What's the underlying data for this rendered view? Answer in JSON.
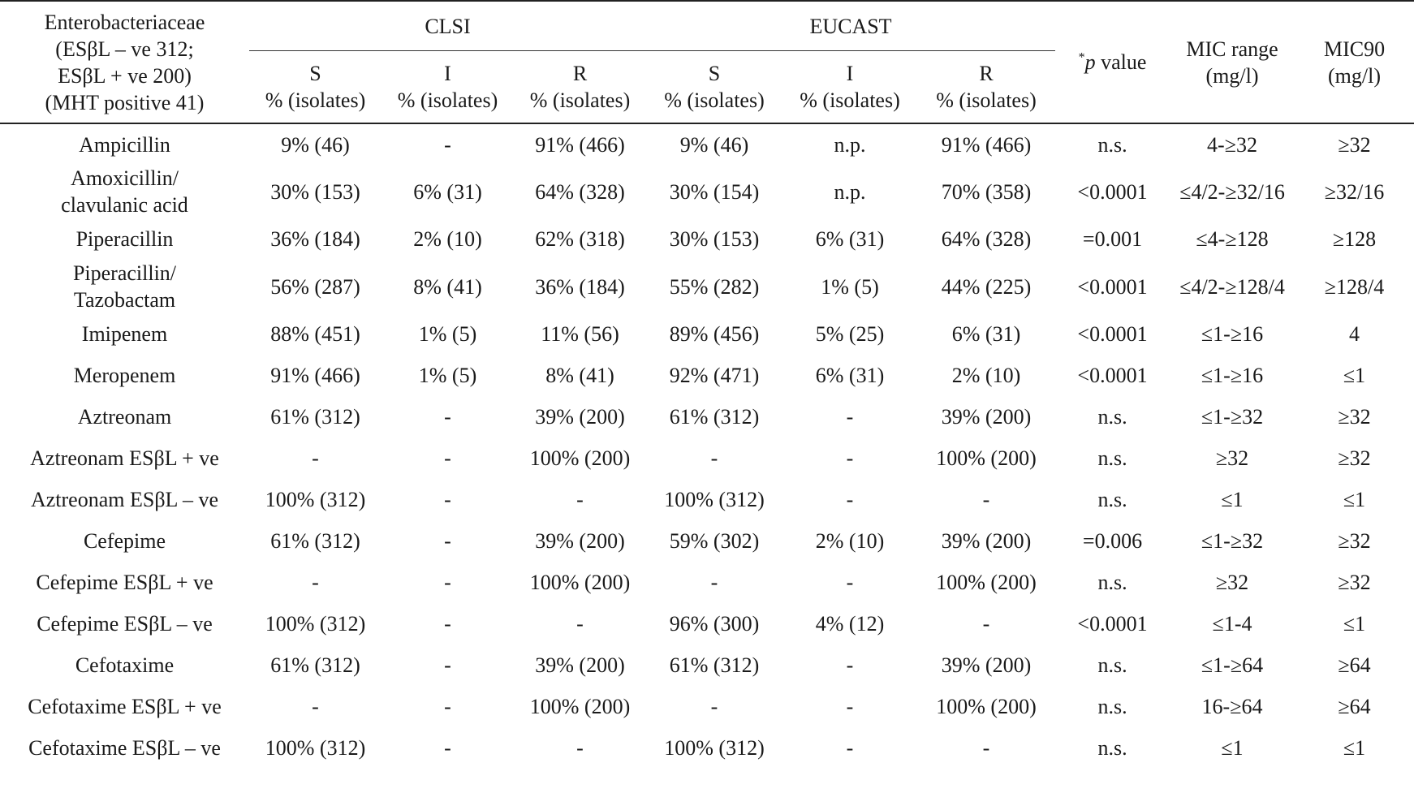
{
  "table": {
    "stub_header_lines": [
      "Enterobacteriaceae",
      "(ESβL – ve 312;",
      "ESβL + ve 200)",
      "(MHT positive 41)"
    ],
    "groups": {
      "clsi": "CLSI",
      "eucast": "EUCAST"
    },
    "sub_headers": {
      "S": {
        "letter": "S",
        "unit": "% (isolates)"
      },
      "I": {
        "letter": "I",
        "unit": "% (isolates)"
      },
      "R": {
        "letter": "R",
        "unit": "% (isolates)"
      }
    },
    "p_value_header": {
      "star": "*",
      "p": "p",
      "rest": " value"
    },
    "mic_range_header": {
      "line1": "MIC range",
      "line2": "(mg/l)"
    },
    "mic90_header": {
      "line1": "MIC90",
      "line2": "(mg/l)"
    },
    "rows": [
      {
        "drug": [
          "Ampicillin"
        ],
        "clsi_s": "9% (46)",
        "clsi_i": "-",
        "clsi_r": "91% (466)",
        "eucast_s": "9% (46)",
        "eucast_i": "n.p.",
        "eucast_r": "91% (466)",
        "p": "n.s.",
        "mic_range": "4-≥32",
        "mic90": "≥32"
      },
      {
        "drug": [
          "Amoxicillin/",
          "clavulanic acid"
        ],
        "clsi_s": "30% (153)",
        "clsi_i": "6% (31)",
        "clsi_r": "64% (328)",
        "eucast_s": "30% (154)",
        "eucast_i": "n.p.",
        "eucast_r": "70% (358)",
        "p": "<0.0001",
        "mic_range": "≤4/2-≥32/16",
        "mic90": "≥32/16"
      },
      {
        "drug": [
          "Piperacillin"
        ],
        "clsi_s": "36% (184)",
        "clsi_i": "2% (10)",
        "clsi_r": "62% (318)",
        "eucast_s": "30% (153)",
        "eucast_i": "6% (31)",
        "eucast_r": "64% (328)",
        "p": "=0.001",
        "mic_range": "≤4-≥128",
        "mic90": "≥128"
      },
      {
        "drug": [
          "Piperacillin/",
          "Tazobactam"
        ],
        "clsi_s": "56% (287)",
        "clsi_i": "8% (41)",
        "clsi_r": "36% (184)",
        "eucast_s": "55% (282)",
        "eucast_i": "1% (5)",
        "eucast_r": "44% (225)",
        "p": "<0.0001",
        "mic_range": "≤4/2-≥128/4",
        "mic90": "≥128/4"
      },
      {
        "drug": [
          "Imipenem"
        ],
        "clsi_s": "88% (451)",
        "clsi_i": "1% (5)",
        "clsi_r": "11% (56)",
        "eucast_s": "89% (456)",
        "eucast_i": "5% (25)",
        "eucast_r": "6% (31)",
        "p": "<0.0001",
        "mic_range": "≤1-≥16",
        "mic90": "4"
      },
      {
        "drug": [
          "Meropenem"
        ],
        "clsi_s": "91% (466)",
        "clsi_i": "1% (5)",
        "clsi_r": "8% (41)",
        "eucast_s": "92% (471)",
        "eucast_i": "6% (31)",
        "eucast_r": "2% (10)",
        "p": "<0.0001",
        "mic_range": "≤1-≥16",
        "mic90": "≤1"
      },
      {
        "drug": [
          "Aztreonam"
        ],
        "clsi_s": "61% (312)",
        "clsi_i": "-",
        "clsi_r": "39% (200)",
        "eucast_s": "61% (312)",
        "eucast_i": "-",
        "eucast_r": "39% (200)",
        "p": "n.s.",
        "mic_range": "≤1-≥32",
        "mic90": "≥32"
      },
      {
        "drug": [
          "Aztreonam ESβL + ve"
        ],
        "clsi_s": "-",
        "clsi_i": "-",
        "clsi_r": "100% (200)",
        "eucast_s": "-",
        "eucast_i": "-",
        "eucast_r": "100% (200)",
        "p": "n.s.",
        "mic_range": "≥32",
        "mic90": "≥32"
      },
      {
        "drug": [
          "Aztreonam ESβL – ve"
        ],
        "clsi_s": "100% (312)",
        "clsi_i": "-",
        "clsi_r": "-",
        "eucast_s": "100% (312)",
        "eucast_i": "-",
        "eucast_r": "-",
        "p": "n.s.",
        "mic_range": "≤1",
        "mic90": "≤1"
      },
      {
        "drug": [
          "Cefepime"
        ],
        "clsi_s": "61% (312)",
        "clsi_i": "-",
        "clsi_r": "39% (200)",
        "eucast_s": "59% (302)",
        "eucast_i": "2% (10)",
        "eucast_r": "39% (200)",
        "p": "=0.006",
        "mic_range": "≤1-≥32",
        "mic90": "≥32"
      },
      {
        "drug": [
          "Cefepime ESβL + ve"
        ],
        "clsi_s": "-",
        "clsi_i": "-",
        "clsi_r": "100% (200)",
        "eucast_s": "-",
        "eucast_i": "-",
        "eucast_r": "100% (200)",
        "p": "n.s.",
        "mic_range": "≥32",
        "mic90": "≥32"
      },
      {
        "drug": [
          "Cefepime ESβL – ve"
        ],
        "clsi_s": "100% (312)",
        "clsi_i": "-",
        "clsi_r": "-",
        "eucast_s": "96% (300)",
        "eucast_i": "4% (12)",
        "eucast_r": "-",
        "p": "<0.0001",
        "mic_range": "≤1-4",
        "mic90": "≤1"
      },
      {
        "drug": [
          "Cefotaxime"
        ],
        "clsi_s": "61% (312)",
        "clsi_i": "-",
        "clsi_r": "39% (200)",
        "eucast_s": "61% (312)",
        "eucast_i": "-",
        "eucast_r": "39% (200)",
        "p": "n.s.",
        "mic_range": "≤1-≥64",
        "mic90": "≥64"
      },
      {
        "drug": [
          "Cefotaxime ESβL + ve"
        ],
        "clsi_s": "-",
        "clsi_i": "-",
        "clsi_r": "100% (200)",
        "eucast_s": "-",
        "eucast_i": "-",
        "eucast_r": "100% (200)",
        "p": "n.s.",
        "mic_range": "16-≥64",
        "mic90": "≥64"
      },
      {
        "drug": [
          "Cefotaxime ESβL – ve"
        ],
        "clsi_s": "100% (312)",
        "clsi_i": "-",
        "clsi_r": "-",
        "eucast_s": "100% (312)",
        "eucast_i": "-",
        "eucast_r": "-",
        "p": "n.s.",
        "mic_range": "≤1",
        "mic90": "≤1"
      }
    ]
  }
}
